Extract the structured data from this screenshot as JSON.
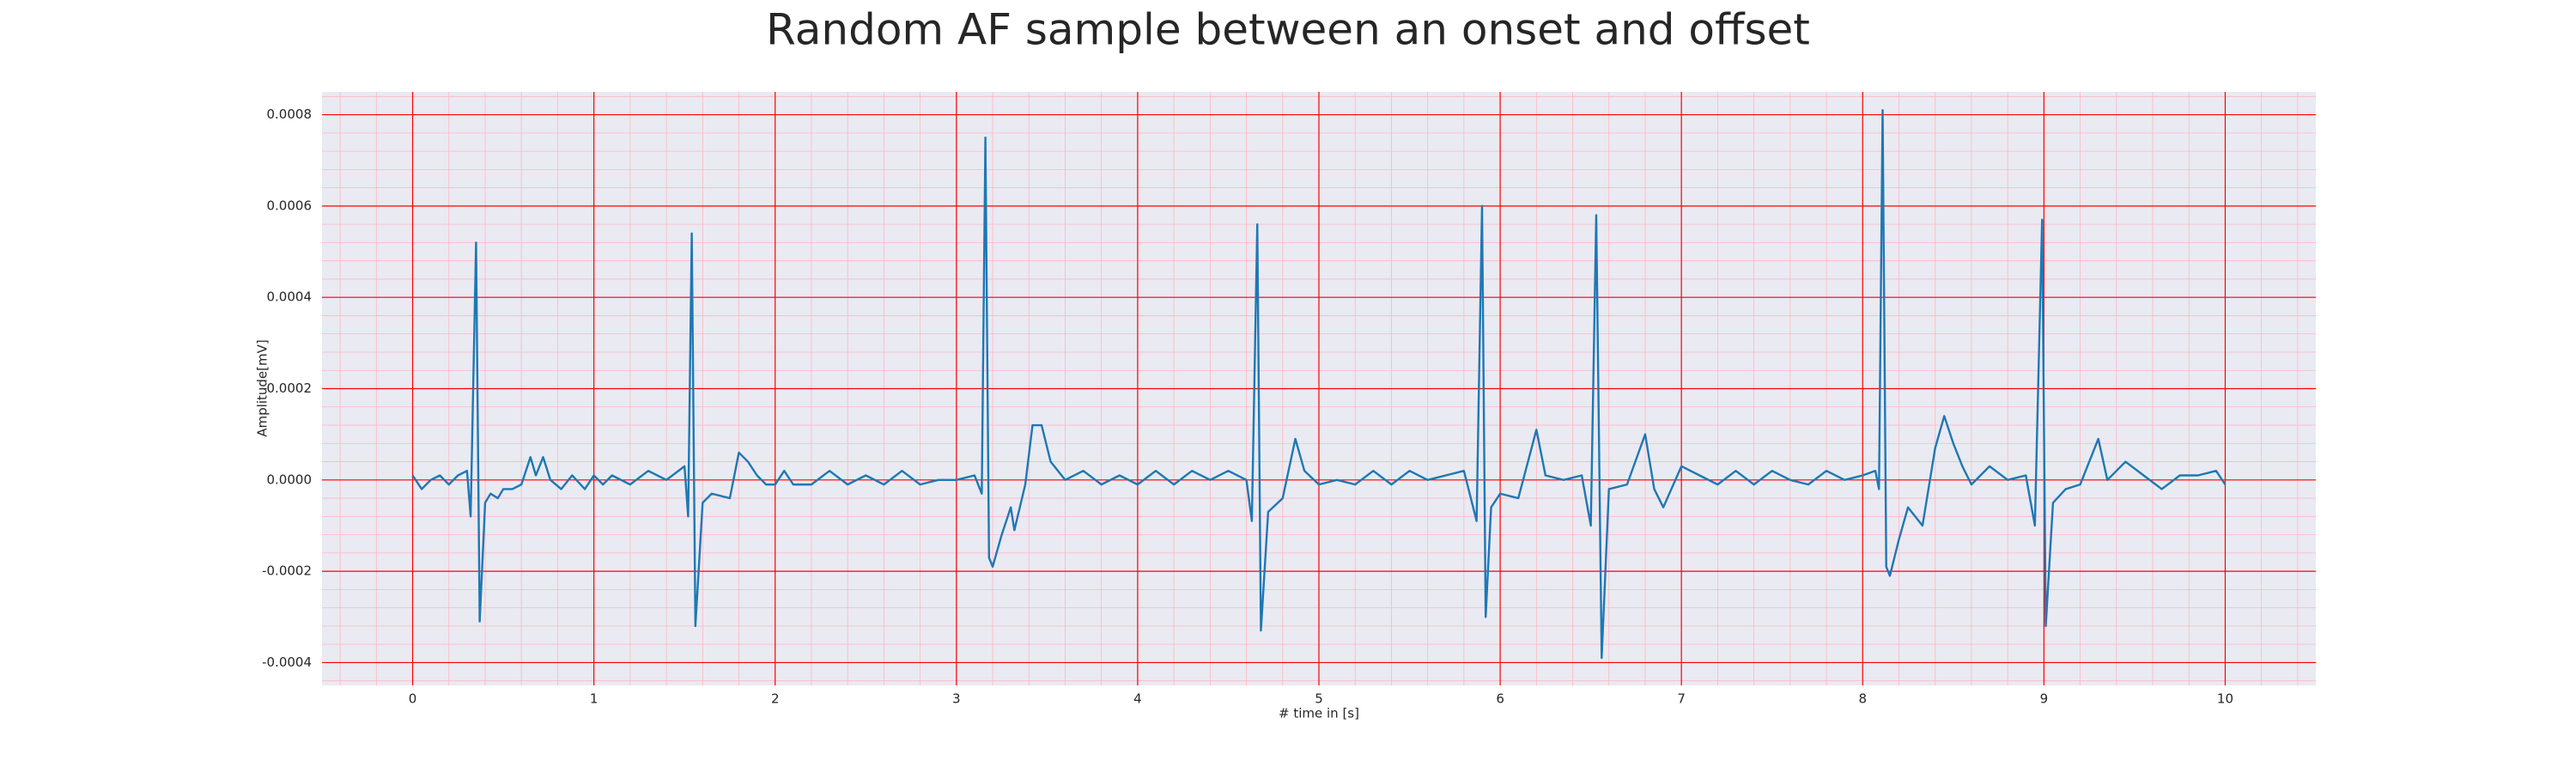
{
  "chart_data": {
    "type": "line",
    "title": "Random AF sample between an onset and offset",
    "x_label": "# time in [s]",
    "y_label": "Amplitude[mV]",
    "xlim": [
      -0.5,
      10.5
    ],
    "ylim": [
      -0.00045,
      0.00085
    ],
    "xticks": [
      0,
      1,
      2,
      3,
      4,
      5,
      6,
      7,
      8,
      9,
      10
    ],
    "yticks": [
      -0.0004,
      -0.0002,
      {
        "value": 0,
        "label": "0.0000"
      },
      0.0002,
      0.0004,
      0.0006,
      0.0008
    ],
    "grid": true,
    "minor_grid": true,
    "background": "#eaeaf2",
    "grid_color": "#ff0000",
    "minor_grid_color": "#ffb6c1",
    "series": [
      {
        "color": "#1f77b4",
        "x": [
          0,
          0.05,
          0.1,
          0.15,
          0.2,
          0.25,
          0.3,
          0.32,
          0.35,
          0.37,
          0.4,
          0.43,
          0.47,
          0.5,
          0.55,
          0.6,
          0.65,
          0.68,
          0.72,
          0.76,
          0.82,
          0.88,
          0.95,
          1.0,
          1.05,
          1.1,
          1.2,
          1.3,
          1.4,
          1.5,
          1.52,
          1.54,
          1.56,
          1.6,
          1.65,
          1.75,
          1.8,
          1.85,
          1.9,
          1.95,
          2.0,
          2.05,
          2.1,
          2.2,
          2.3,
          2.4,
          2.5,
          2.6,
          2.7,
          2.8,
          2.9,
          3.0,
          3.1,
          3.14,
          3.16,
          3.18,
          3.2,
          3.25,
          3.3,
          3.32,
          3.38,
          3.42,
          3.47,
          3.52,
          3.6,
          3.7,
          3.8,
          3.9,
          4.0,
          4.1,
          4.2,
          4.3,
          4.4,
          4.5,
          4.6,
          4.63,
          4.66,
          4.68,
          4.72,
          4.8,
          4.87,
          4.92,
          5.0,
          5.1,
          5.2,
          5.3,
          5.4,
          5.5,
          5.6,
          5.7,
          5.8,
          5.87,
          5.9,
          5.92,
          5.95,
          6.0,
          6.1,
          6.2,
          6.25,
          6.35,
          6.45,
          6.5,
          6.53,
          6.56,
          6.6,
          6.7,
          6.8,
          6.85,
          6.9,
          7.0,
          7.1,
          7.2,
          7.3,
          7.4,
          7.5,
          7.6,
          7.7,
          7.8,
          7.9,
          8.0,
          8.07,
          8.09,
          8.11,
          8.13,
          8.15,
          8.2,
          8.25,
          8.33,
          8.4,
          8.45,
          8.5,
          8.55,
          8.6,
          8.7,
          8.8,
          8.9,
          8.95,
          8.99,
          9.01,
          9.05,
          9.12,
          9.2,
          9.3,
          9.35,
          9.45,
          9.55,
          9.65,
          9.75,
          9.85,
          9.95,
          10.0
        ],
        "values": [
          1e-05,
          -2e-05,
          0.0,
          1e-05,
          -1e-05,
          1e-05,
          2e-05,
          -8e-05,
          0.00052,
          -0.00031,
          -5e-05,
          -3e-05,
          -4e-05,
          -2e-05,
          -2e-05,
          -1e-05,
          5e-05,
          1e-05,
          5e-05,
          0.0,
          -2e-05,
          1e-05,
          -2e-05,
          1e-05,
          -1e-05,
          1e-05,
          -1e-05,
          2e-05,
          0.0,
          3e-05,
          -8e-05,
          0.00054,
          -0.00032,
          -5e-05,
          -3e-05,
          -4e-05,
          6e-05,
          4e-05,
          1e-05,
          -1e-05,
          -1e-05,
          2e-05,
          -1e-05,
          -1e-05,
          2e-05,
          -1e-05,
          1e-05,
          -1e-05,
          2e-05,
          -1e-05,
          0.0,
          0.0,
          1e-05,
          -3e-05,
          0.00075,
          -0.00017,
          -0.00019,
          -0.00012,
          -6e-05,
          -0.00011,
          -1e-05,
          0.00012,
          0.00012,
          4e-05,
          0.0,
          2e-05,
          -1e-05,
          1e-05,
          -1e-05,
          2e-05,
          -1e-05,
          2e-05,
          0.0,
          2e-05,
          0.0,
          -9e-05,
          0.00056,
          -0.00033,
          -7e-05,
          -4e-05,
          9e-05,
          2e-05,
          -1e-05,
          0.0,
          -1e-05,
          2e-05,
          -1e-05,
          2e-05,
          0.0,
          1e-05,
          2e-05,
          -9e-05,
          0.0006,
          -0.0003,
          -6e-05,
          -3e-05,
          -4e-05,
          0.00011,
          1e-05,
          0.0,
          1e-05,
          -0.0001,
          0.00058,
          -0.00039,
          -2e-05,
          -1e-05,
          0.0001,
          -2e-05,
          -6e-05,
          3e-05,
          1e-05,
          -1e-05,
          2e-05,
          -1e-05,
          2e-05,
          0.0,
          -1e-05,
          2e-05,
          0.0,
          1e-05,
          2e-05,
          -2e-05,
          0.00081,
          -0.00019,
          -0.00021,
          -0.00013,
          -6e-05,
          -0.0001,
          7e-05,
          0.00014,
          8e-05,
          3e-05,
          -1e-05,
          3e-05,
          0.0,
          1e-05,
          -0.0001,
          0.00057,
          -0.00032,
          -5e-05,
          -2e-05,
          -1e-05,
          9e-05,
          0.0,
          4e-05,
          1e-05,
          -2e-05,
          1e-05,
          1e-05,
          2e-05,
          -1e-05
        ]
      }
    ]
  }
}
